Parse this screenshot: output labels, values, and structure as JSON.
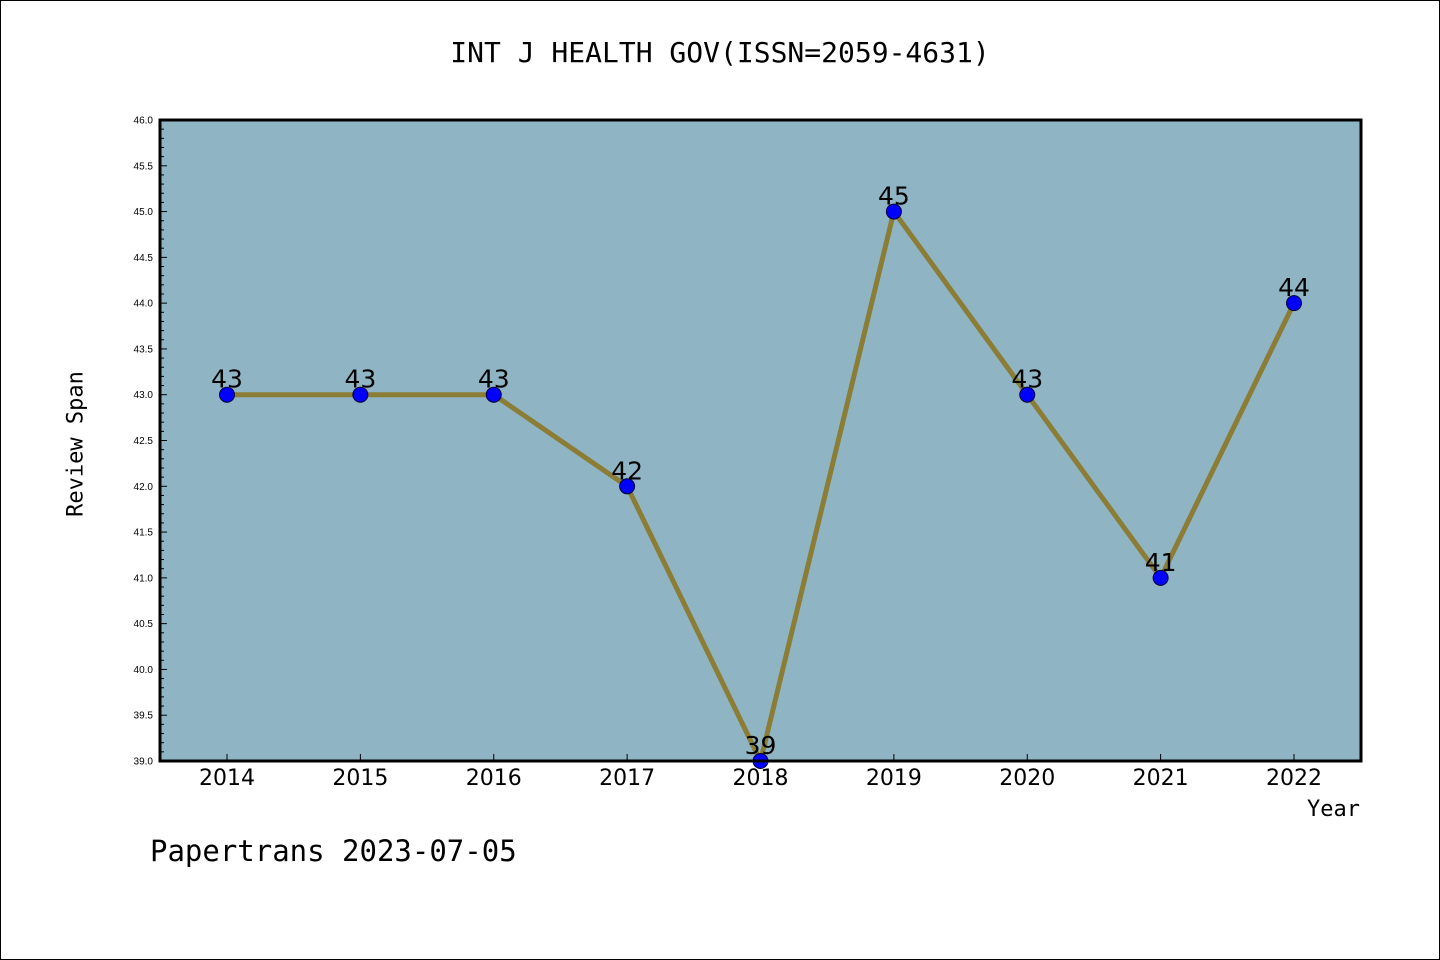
{
  "title": "INT J HEALTH GOV(ISSN=2059-4631)",
  "footer": "Papertrans 2023-07-05",
  "colors": {
    "plot_background": "#8fb5c4",
    "line": "#8b7d35",
    "marker": "#0000ff",
    "axes": "#000000"
  },
  "chart_data": {
    "type": "line",
    "title": "INT J HEALTH GOV(ISSN=2059-4631)",
    "xlabel": "Year",
    "ylabel": "Review Span",
    "categories": [
      "2014",
      "2015",
      "2016",
      "2017",
      "2018",
      "2019",
      "2020",
      "2021",
      "2022"
    ],
    "values": [
      43,
      43,
      43,
      42,
      39,
      45,
      43,
      41,
      44
    ],
    "data_labels": [
      "43",
      "43",
      "43",
      "42",
      "39",
      "45",
      "43",
      "41",
      "44"
    ],
    "ylim": [
      39.0,
      46.0
    ],
    "y_ticks": [
      "39.0",
      "39.5",
      "40.0",
      "40.5",
      "41.0",
      "41.5",
      "42.0",
      "42.5",
      "43.0",
      "43.5",
      "44.0",
      "44.5",
      "45.0",
      "45.5",
      "46.0"
    ],
    "grid": false,
    "legend": "none"
  }
}
